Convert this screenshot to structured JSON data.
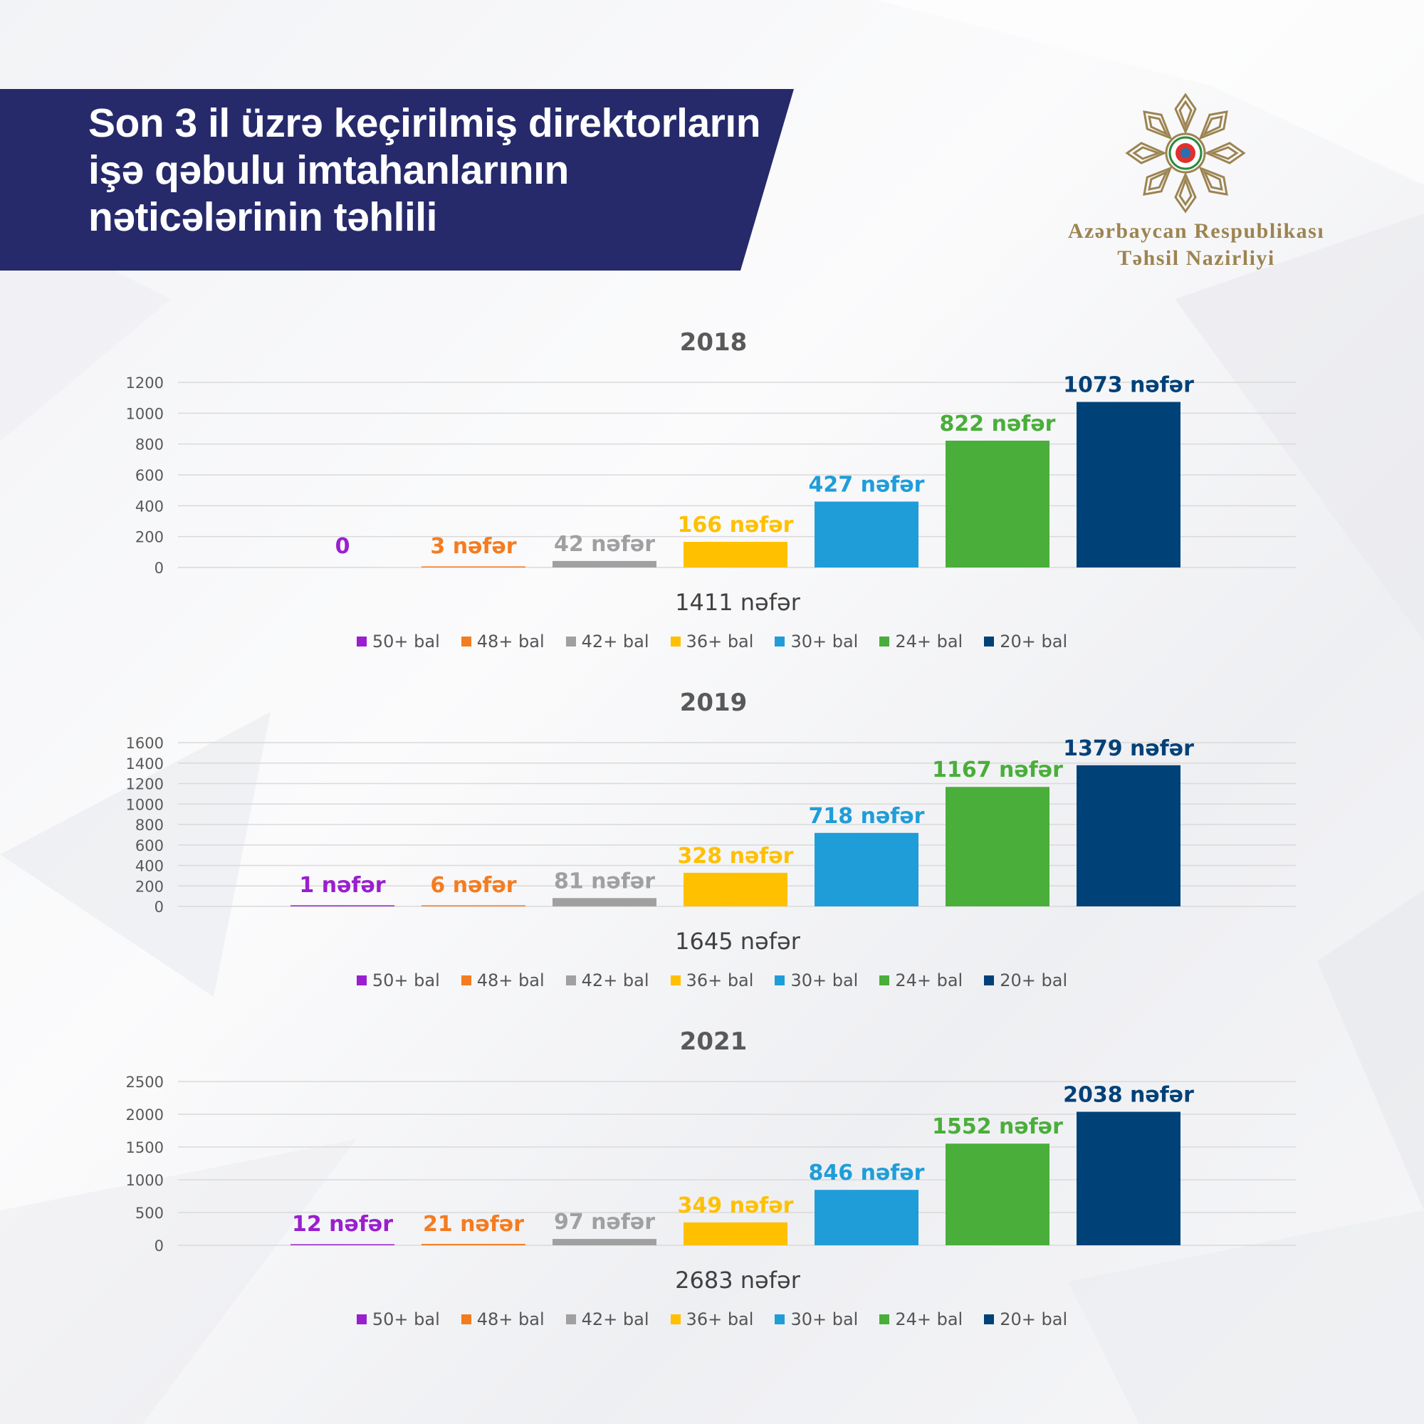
{
  "header": {
    "title_lines": [
      "Son 3 il üzrə keçirilmiş direktorların",
      "işə qəbulu imtahanlarının",
      "nəticələrinin təhlili"
    ],
    "ministry_lines": [
      "Azərbaycan Respublikası",
      "Təhsil Nazirliyi"
    ]
  },
  "colors": {
    "banner": "#262a6b",
    "gold": "#9c8451",
    "series": [
      "#9a1fce",
      "#f47c20",
      "#a0a0a0",
      "#ffc000",
      "#1f9dd9",
      "#4aae3a",
      "#004178"
    ]
  },
  "chart_data": [
    {
      "type": "bar",
      "title": "2018",
      "categories": [
        "50+ bal",
        "48+ bal",
        "42+ bal",
        "36+ bal",
        "30+ bal",
        "24+ bal",
        "20+ bal"
      ],
      "values": [
        0,
        3,
        42,
        166,
        427,
        822,
        1073
      ],
      "data_labels": [
        "0",
        "3 nəfər",
        "42 nəfər",
        "166 nəfər",
        "427 nəfər",
        "822 nəfər",
        "1073 nəfər"
      ],
      "ylim": [
        0,
        1200
      ],
      "yticks": [
        0,
        200,
        400,
        600,
        800,
        1000,
        1200
      ],
      "xlabel": "1411 nəfər",
      "legend": [
        "50+ bal",
        "48+ bal",
        "42+ bal",
        "36+ bal",
        "30+ bal",
        "24+ bal",
        "20+ bal"
      ],
      "legend_position": "bottom",
      "grid": true
    },
    {
      "type": "bar",
      "title": "2019",
      "categories": [
        "50+ bal",
        "48+ bal",
        "42+ bal",
        "36+ bal",
        "30+ bal",
        "24+ bal",
        "20+ bal"
      ],
      "values": [
        1,
        6,
        81,
        328,
        718,
        1167,
        1379
      ],
      "data_labels": [
        "1 nəfər",
        "6 nəfər",
        "81 nəfər",
        "328 nəfər",
        "718 nəfər",
        "1167 nəfər",
        "1379 nəfər"
      ],
      "ylim": [
        0,
        1600
      ],
      "yticks": [
        0,
        200,
        400,
        600,
        800,
        1000,
        1200,
        1400,
        1600
      ],
      "xlabel": "1645 nəfər",
      "legend": [
        "50+ bal",
        "48+ bal",
        "42+ bal",
        "36+ bal",
        "30+ bal",
        "24+ bal",
        "20+ bal"
      ],
      "legend_position": "bottom",
      "grid": true
    },
    {
      "type": "bar",
      "title": "2021",
      "categories": [
        "50+ bal",
        "48+ bal",
        "42+ bal",
        "36+ bal",
        "30+ bal",
        "24+ bal",
        "20+ bal"
      ],
      "values": [
        12,
        21,
        97,
        349,
        846,
        1552,
        2038
      ],
      "data_labels": [
        "12 nəfər",
        "21 nəfər",
        "97 nəfər",
        "349 nəfər",
        "846 nəfər",
        "1552 nəfər",
        "2038 nəfər"
      ],
      "ylim": [
        0,
        2500
      ],
      "yticks": [
        0,
        500,
        1000,
        1500,
        2000,
        2500
      ],
      "xlabel": "2683 nəfər",
      "legend": [
        "50+ bal",
        "48+ bal",
        "42+ bal",
        "36+ bal",
        "30+ bal",
        "24+ bal",
        "20+ bal"
      ],
      "legend_position": "bottom",
      "grid": true
    }
  ]
}
